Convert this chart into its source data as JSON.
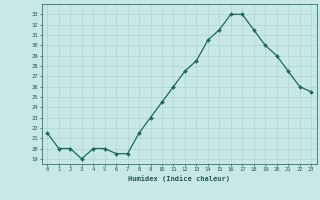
{
  "x": [
    0,
    1,
    2,
    3,
    4,
    5,
    6,
    7,
    8,
    9,
    10,
    11,
    12,
    13,
    14,
    15,
    16,
    17,
    18,
    19,
    20,
    21,
    22,
    23
  ],
  "y": [
    21.5,
    20.0,
    20.0,
    19.0,
    20.0,
    20.0,
    19.5,
    19.5,
    21.5,
    23.0,
    24.5,
    26.0,
    27.5,
    28.5,
    30.5,
    31.5,
    33.0,
    33.0,
    31.5,
    30.0,
    29.0,
    27.5,
    26.0,
    25.5
  ],
  "xlabel": "Humidex (Indice chaleur)",
  "xlim": [
    -0.5,
    23.5
  ],
  "ylim": [
    18.5,
    34.0
  ],
  "yticks": [
    19,
    20,
    21,
    22,
    23,
    24,
    25,
    26,
    27,
    28,
    29,
    30,
    31,
    32,
    33
  ],
  "xticks": [
    0,
    1,
    2,
    3,
    4,
    5,
    6,
    7,
    8,
    9,
    10,
    11,
    12,
    13,
    14,
    15,
    16,
    17,
    18,
    19,
    20,
    21,
    22,
    23
  ],
  "line_color": "#1a6b5a",
  "marker_color": "#1a6b5a",
  "bg_color": "#c8e8e8",
  "grid_color": "#aed4d4",
  "axis_color": "#2a7a6a",
  "label_color": "#1a5a4a",
  "tick_color": "#1a5a4a"
}
